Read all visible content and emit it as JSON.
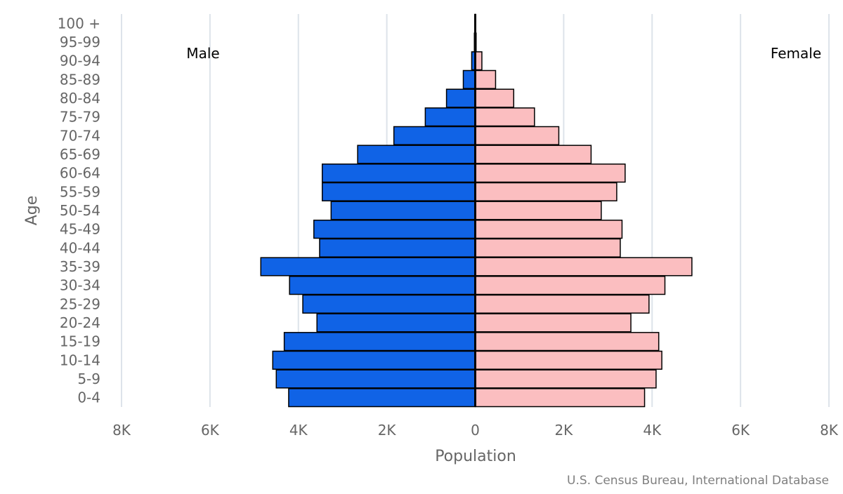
{
  "chart_data": {
    "type": "bar",
    "orientation": "horizontal",
    "subtype": "population-pyramid",
    "categories": [
      "100 +",
      "95-99",
      "90-94",
      "85-89",
      "80-84",
      "75-79",
      "70-74",
      "65-69",
      "60-64",
      "55-59",
      "50-54",
      "45-49",
      "40-44",
      "35-39",
      "30-34",
      "25-29",
      "20-24",
      "15-19",
      "10-14",
      "5-9",
      "0-4"
    ],
    "series": [
      {
        "name": "Male",
        "color": "#1063e6",
        "values": [
          10,
          20,
          80,
          270,
          650,
          1130,
          1840,
          2660,
          3460,
          3460,
          3260,
          3650,
          3520,
          4850,
          4200,
          3900,
          3580,
          4320,
          4580,
          4500,
          4220
        ]
      },
      {
        "name": "Female",
        "color": "#fbbec0",
        "values": [
          10,
          20,
          150,
          460,
          870,
          1340,
          1890,
          2620,
          3390,
          3200,
          2850,
          3320,
          3280,
          4900,
          4290,
          3930,
          3520,
          4150,
          4220,
          4090,
          3830
        ]
      }
    ],
    "xlabel": "Population",
    "ylabel": "Age",
    "xlim": [
      -8000,
      8000
    ],
    "xticks": [
      -8000,
      -6000,
      -4000,
      -2000,
      0,
      2000,
      4000,
      6000,
      8000
    ],
    "xtick_labels": [
      "8K",
      "6K",
      "4K",
      "2K",
      "0",
      "2K",
      "4K",
      "6K",
      "8K"
    ],
    "grid": true,
    "side_labels": {
      "left": "Male",
      "right": "Female"
    },
    "credit": "U.S. Census Bureau, International Database"
  }
}
